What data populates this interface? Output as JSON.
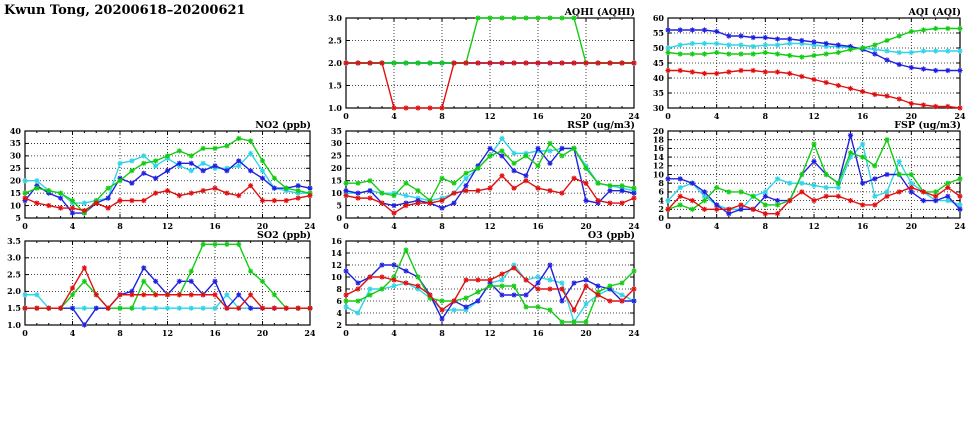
{
  "page_title": "Kwun Tong, 20200618–20200621",
  "colors": {
    "red": "#e01010",
    "blue": "#2020e0",
    "cyan": "#2fd4e6",
    "green": "#12cc12"
  },
  "chart_data": [
    {
      "id": "aqhi",
      "type": "line",
      "title": "AQHI (AQHI)",
      "xlim": [
        0,
        24
      ],
      "xticks": [
        0,
        4,
        8,
        12,
        16,
        20,
        24
      ],
      "grid": true,
      "legend": "none",
      "ylim": [
        1,
        3
      ],
      "yticks": [
        1,
        1.5,
        2,
        2.5,
        3
      ],
      "ytick_labels": [
        "1.0",
        "1.5",
        "2.0",
        "2.5",
        "3.0"
      ],
      "series": [
        {
          "name": "cyan",
          "color": "cyan",
          "values": [
            2,
            2,
            2,
            2,
            2,
            2,
            2,
            2,
            2,
            2,
            2,
            2,
            2,
            2,
            2,
            2,
            2,
            2,
            2,
            2,
            2,
            2,
            2,
            2,
            2
          ]
        },
        {
          "name": "blue",
          "color": "blue",
          "values": [
            2,
            2,
            2,
            2,
            2,
            2,
            2,
            2,
            2,
            2,
            2,
            2,
            2,
            2,
            2,
            2,
            2,
            2,
            2,
            2,
            2,
            2,
            2,
            2,
            2
          ]
        },
        {
          "name": "green",
          "color": "green",
          "values": [
            2,
            2,
            2,
            2,
            2,
            2,
            2,
            2,
            2,
            2,
            2,
            3,
            3,
            3,
            3,
            3,
            3,
            3,
            3,
            3,
            2,
            2,
            2,
            2,
            2
          ]
        },
        {
          "name": "red",
          "color": "red",
          "values": [
            2,
            2,
            2,
            2,
            1,
            1,
            1,
            1,
            1,
            2,
            2,
            2,
            2,
            2,
            2,
            2,
            2,
            2,
            2,
            2,
            2,
            2,
            2,
            2,
            2
          ]
        }
      ]
    },
    {
      "id": "aqi",
      "type": "line",
      "title": "AQI (AQI)",
      "xlim": [
        0,
        24
      ],
      "xticks": [
        0,
        4,
        8,
        12,
        16,
        20,
        24
      ],
      "grid": true,
      "legend": "none",
      "ylim": [
        30,
        60
      ],
      "yticks": [
        30,
        35,
        40,
        45,
        50,
        55,
        60
      ],
      "ytick_labels": [
        "30",
        "35",
        "40",
        "45",
        "50",
        "55",
        "60"
      ],
      "series": [
        {
          "name": "cyan",
          "color": "cyan",
          "values": [
            50,
            51,
            51.5,
            51.5,
            51.5,
            51,
            51,
            50.5,
            51,
            51,
            51.5,
            51.5,
            51,
            50.5,
            50.5,
            50,
            50,
            49.5,
            49,
            48.5,
            48.5,
            49,
            49,
            49,
            49
          ]
        },
        {
          "name": "blue",
          "color": "blue",
          "values": [
            56,
            56,
            56,
            56,
            55.5,
            54,
            54,
            53.5,
            53.5,
            53,
            53,
            52.5,
            52,
            51.5,
            51,
            50.5,
            49.5,
            48,
            46,
            44.5,
            43.5,
            43,
            42.5,
            42.5,
            42.5
          ]
        },
        {
          "name": "green",
          "color": "green",
          "values": [
            48.5,
            48,
            48,
            48,
            48.5,
            48,
            48,
            48,
            48.5,
            48,
            47.5,
            47,
            47.5,
            48,
            48.5,
            49.5,
            50,
            51,
            52.5,
            54,
            55.5,
            56,
            56.5,
            56.5,
            56.5
          ]
        },
        {
          "name": "red",
          "color": "red",
          "values": [
            42.5,
            42.5,
            42,
            41.5,
            41.5,
            42,
            42.5,
            42.5,
            42,
            42,
            41.5,
            40.5,
            39.5,
            38.5,
            37.5,
            36.5,
            35.5,
            34.5,
            34,
            33,
            31.5,
            31,
            30.5,
            30.5,
            30
          ]
        }
      ]
    },
    {
      "id": "no2",
      "type": "line",
      "title": "NO2 (ppb)",
      "xlim": [
        0,
        24
      ],
      "xticks": [
        0,
        4,
        8,
        12,
        16,
        20,
        24
      ],
      "grid": true,
      "legend": "none",
      "ylim": [
        5,
        40
      ],
      "yticks": [
        5,
        10,
        15,
        20,
        25,
        30,
        35,
        40
      ],
      "ytick_labels": [
        "5",
        "10",
        "15",
        "20",
        "25",
        "30",
        "35",
        "40"
      ],
      "series": [
        {
          "name": "cyan",
          "color": "cyan",
          "values": [
            20,
            20,
            16,
            15,
            11,
            11,
            12,
            13,
            27,
            28,
            30,
            26,
            29,
            26,
            24,
            27,
            25,
            25,
            26,
            31,
            24,
            17,
            16,
            15,
            15
          ]
        },
        {
          "name": "blue",
          "color": "blue",
          "values": [
            12,
            18,
            15,
            13,
            7,
            7,
            11,
            13,
            21,
            19,
            23,
            21,
            24,
            27,
            27,
            24,
            26,
            24,
            28,
            24,
            21,
            17,
            17,
            18,
            17
          ]
        },
        {
          "name": "green",
          "color": "green",
          "values": [
            15,
            17,
            16,
            15,
            12,
            7,
            12,
            17,
            20,
            24,
            27,
            28,
            30,
            32,
            30,
            33,
            33,
            34,
            37,
            36,
            28,
            21,
            17,
            16,
            15
          ]
        },
        {
          "name": "red",
          "color": "red",
          "values": [
            13,
            11,
            10,
            9,
            9,
            8,
            11,
            9,
            12,
            12,
            12,
            15,
            16,
            14,
            15,
            16,
            17,
            15,
            14,
            18,
            12,
            12,
            12,
            13,
            14
          ]
        }
      ]
    },
    {
      "id": "rsp",
      "type": "line",
      "title": "RSP (ug/m3)",
      "xlim": [
        0,
        24
      ],
      "xticks": [
        0,
        4,
        8,
        12,
        16,
        20,
        24
      ],
      "grid": true,
      "legend": "none",
      "ylim": [
        0,
        35
      ],
      "yticks": [
        0,
        5,
        10,
        15,
        20,
        25,
        30,
        35
      ],
      "ytick_labels": [
        "0",
        "5",
        "10",
        "15",
        "20",
        "25",
        "30",
        "35"
      ],
      "series": [
        {
          "name": "cyan",
          "color": "cyan",
          "values": [
            10,
            10,
            11,
            10,
            10,
            9,
            8,
            7,
            8,
            10,
            16,
            20,
            25,
            32,
            26,
            26,
            27,
            27,
            28,
            28,
            21,
            14,
            13,
            12,
            11
          ]
        },
        {
          "name": "blue",
          "color": "blue",
          "values": [
            11,
            10,
            11,
            6,
            5,
            6,
            7,
            6,
            4,
            6,
            13,
            21,
            28,
            25,
            19,
            17,
            28,
            22,
            28,
            28,
            7,
            6,
            11,
            11,
            10
          ]
        },
        {
          "name": "green",
          "color": "green",
          "values": [
            14,
            14,
            15,
            10,
            9,
            14,
            11,
            7,
            16,
            14,
            18,
            20,
            25,
            27,
            22,
            25,
            21,
            30,
            25,
            28,
            20,
            14,
            13,
            13,
            12
          ]
        },
        {
          "name": "red",
          "color": "red",
          "values": [
            9,
            8,
            8,
            6,
            2,
            5,
            6,
            6,
            7,
            10,
            11,
            11,
            12,
            17,
            12,
            15,
            12,
            11,
            10,
            16,
            14,
            7,
            6,
            6,
            8
          ]
        }
      ]
    },
    {
      "id": "fsp",
      "type": "line",
      "title": "FSP (ug/m3)",
      "xlim": [
        0,
        24
      ],
      "xticks": [
        0,
        4,
        8,
        12,
        16,
        20,
        24
      ],
      "grid": true,
      "legend": "none",
      "ylim": [
        0,
        20
      ],
      "yticks": [
        0,
        2,
        4,
        6,
        8,
        10,
        12,
        14,
        16,
        18,
        20
      ],
      "ytick_labels": [
        "0",
        "2",
        "4",
        "6",
        "8",
        "10",
        "12",
        "14",
        "16",
        "18",
        "20"
      ],
      "series": [
        {
          "name": "cyan",
          "color": "cyan",
          "values": [
            4,
            7,
            8,
            5,
            3,
            2,
            2,
            5,
            6,
            9,
            8,
            8,
            7.5,
            7,
            7,
            14,
            17,
            5,
            6,
            13,
            8,
            6,
            4,
            4,
            3
          ]
        },
        {
          "name": "blue",
          "color": "blue",
          "values": [
            9,
            9,
            8,
            6,
            3,
            1,
            2,
            2,
            5,
            4,
            4,
            10,
            13,
            10,
            8,
            19,
            8,
            9,
            10,
            10,
            6,
            4,
            4,
            5,
            2
          ]
        },
        {
          "name": "green",
          "color": "green",
          "values": [
            2,
            3,
            2,
            4,
            7,
            6,
            6,
            5,
            3,
            3,
            4,
            10,
            17,
            10,
            8,
            15,
            14,
            12,
            18,
            10,
            10,
            6,
            6,
            8,
            9
          ]
        },
        {
          "name": "red",
          "color": "red",
          "values": [
            2,
            5,
            4,
            2,
            2,
            2,
            3,
            2,
            1,
            1,
            4,
            6,
            4,
            5,
            5,
            4,
            3,
            3,
            5,
            6,
            7,
            6,
            5,
            7,
            5
          ]
        }
      ]
    },
    {
      "id": "so2",
      "type": "line",
      "title": "SO2 (ppb)",
      "xlim": [
        0,
        24
      ],
      "xticks": [
        0,
        4,
        8,
        12,
        16,
        20,
        24
      ],
      "grid": true,
      "legend": "none",
      "ylim": [
        1,
        3.5
      ],
      "yticks": [
        1,
        1.5,
        2,
        2.5,
        3,
        3.5
      ],
      "ytick_labels": [
        "1.0",
        "1.5",
        "2.0",
        "2.5",
        "3.0",
        "3.5"
      ],
      "series": [
        {
          "name": "cyan",
          "color": "cyan",
          "values": [
            1.9,
            1.9,
            1.5,
            1.5,
            1.5,
            1.5,
            1.5,
            1.5,
            1.5,
            1.5,
            1.5,
            1.5,
            1.5,
            1.5,
            1.5,
            1.5,
            1.5,
            1.9,
            1.5,
            1.5,
            1.5,
            1.5,
            1.5,
            1.5,
            1.5
          ]
        },
        {
          "name": "blue",
          "color": "blue",
          "values": [
            1.5,
            1.5,
            1.5,
            1.5,
            1.5,
            1.0,
            1.5,
            1.5,
            1.9,
            2.0,
            2.7,
            2.3,
            1.9,
            2.3,
            2.3,
            1.9,
            2.3,
            1.5,
            1.9,
            1.5,
            1.5,
            1.5,
            1.5,
            1.5,
            1.5
          ]
        },
        {
          "name": "green",
          "color": "green",
          "values": [
            1.5,
            1.5,
            1.5,
            1.5,
            1.9,
            2.3,
            1.9,
            1.5,
            1.5,
            1.5,
            2.3,
            1.9,
            1.9,
            1.9,
            2.6,
            3.4,
            3.4,
            3.4,
            3.4,
            2.6,
            2.3,
            1.9,
            1.5,
            1.5,
            1.5
          ]
        },
        {
          "name": "red",
          "color": "red",
          "values": [
            1.5,
            1.5,
            1.5,
            1.5,
            2.1,
            2.7,
            1.9,
            1.5,
            1.9,
            1.9,
            1.9,
            1.9,
            1.9,
            1.9,
            1.9,
            1.9,
            1.9,
            1.5,
            1.5,
            1.9,
            1.5,
            1.5,
            1.5,
            1.5,
            1.5
          ]
        }
      ]
    },
    {
      "id": "o3",
      "type": "line",
      "title": "O3 (ppb)",
      "xlim": [
        0,
        24
      ],
      "xticks": [
        0,
        4,
        8,
        12,
        16,
        20,
        24
      ],
      "grid": true,
      "legend": "none",
      "ylim": [
        2,
        16
      ],
      "yticks": [
        2,
        4,
        6,
        8,
        10,
        12,
        14,
        16
      ],
      "ytick_labels": [
        "2",
        "4",
        "6",
        "8",
        "10",
        "12",
        "14",
        "16"
      ],
      "series": [
        {
          "name": "cyan",
          "color": "cyan",
          "values": [
            5,
            4,
            8,
            8,
            8.5,
            9,
            8,
            6.5,
            4.5,
            4.5,
            4.5,
            6,
            9,
            9.5,
            12,
            9.5,
            10,
            9.5,
            9,
            2.5,
            5.5,
            7,
            8,
            7,
            6
          ]
        },
        {
          "name": "blue",
          "color": "blue",
          "values": [
            11,
            9,
            10,
            12,
            12,
            11,
            10,
            7,
            3,
            6,
            5,
            6,
            9,
            7,
            7,
            7,
            9,
            12,
            6,
            9,
            9.5,
            8.5,
            8,
            6,
            6
          ]
        },
        {
          "name": "green",
          "color": "green",
          "values": [
            6,
            6,
            7,
            8,
            10,
            14.5,
            10,
            6.5,
            6,
            6,
            6.5,
            7.5,
            8.5,
            8.5,
            8.5,
            5,
            5,
            4.5,
            2.5,
            2.5,
            2.5,
            7.5,
            8.5,
            9,
            11
          ]
        },
        {
          "name": "red",
          "color": "red",
          "values": [
            7,
            8,
            10,
            10,
            9.5,
            9,
            8.5,
            7,
            4.5,
            6,
            9.5,
            9.5,
            9.5,
            10.5,
            11.5,
            9.5,
            8,
            8,
            8,
            4.5,
            8.5,
            7,
            6,
            6,
            8
          ]
        }
      ]
    }
  ]
}
